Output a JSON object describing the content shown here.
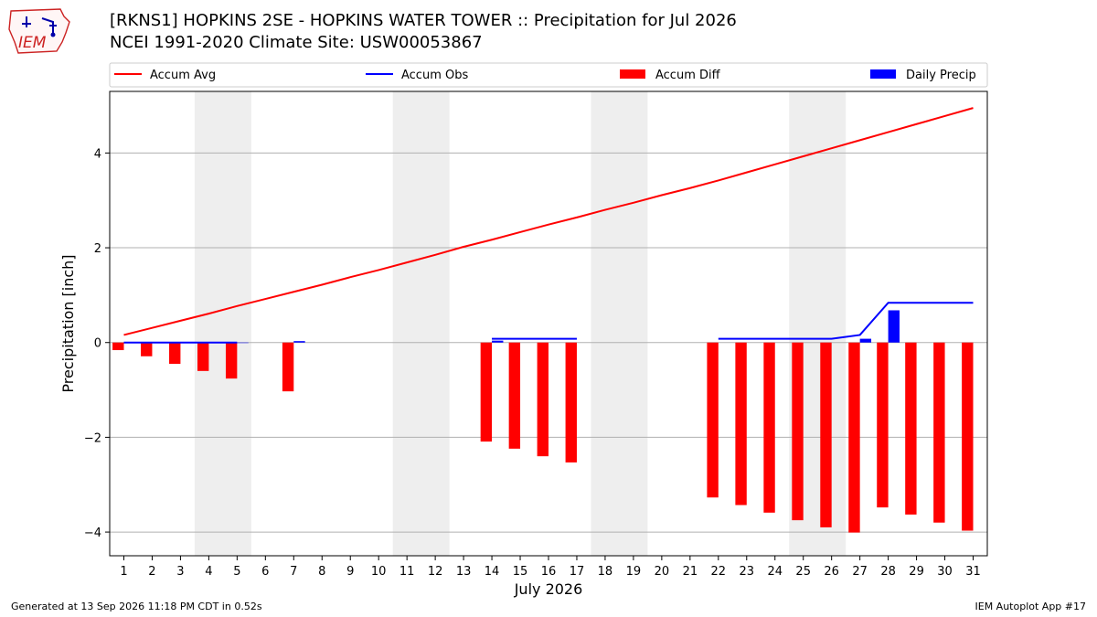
{
  "title_line1": "[RKNS1] HOPKINS 2SE - HOPKINS WATER TOWER :: Precipitation for Jul 2026",
  "title_line2": "NCEI 1991-2020 Climate Site: USW00053867",
  "logo_text": "IEM",
  "footer_left": "Generated at 13 Sep 2026 11:18 PM CDT in 0.52s",
  "footer_right": "IEM Autoplot App #17",
  "colors": {
    "accum_avg": "#ff0000",
    "accum_obs": "#0000ff",
    "accum_diff": "#ff0000",
    "daily_precip": "#0000ff",
    "weekend_shade": "#eeeeee",
    "grid": "#b0b0b0"
  },
  "chart_data": {
    "type": "bar",
    "xlabel": "July 2026",
    "ylabel": "Precipitation [inch]",
    "ylim": [
      -4.5,
      5.3
    ],
    "xlim": [
      0.5,
      31.5
    ],
    "yticks": [
      -4,
      -2,
      0,
      2,
      4
    ],
    "ytick_labels": [
      "−4",
      "−2",
      "0",
      "2",
      "4"
    ],
    "days": [
      1,
      2,
      3,
      4,
      5,
      6,
      7,
      8,
      9,
      10,
      11,
      12,
      13,
      14,
      15,
      16,
      17,
      18,
      19,
      20,
      21,
      22,
      23,
      24,
      25,
      26,
      27,
      28,
      29,
      30,
      31
    ],
    "grid": "horizontal",
    "legend_position": "top",
    "legend": [
      {
        "key": "accum_avg",
        "label": "Accum Avg",
        "kind": "line"
      },
      {
        "key": "accum_obs",
        "label": "Accum Obs",
        "kind": "line"
      },
      {
        "key": "accum_diff",
        "label": "Accum Diff",
        "kind": "bar"
      },
      {
        "key": "daily_precip",
        "label": "Daily Precip",
        "kind": "bar"
      }
    ],
    "weekend_spans": [
      [
        3.5,
        5.5
      ],
      [
        10.5,
        12.5
      ],
      [
        17.5,
        19.5
      ],
      [
        24.5,
        26.5
      ]
    ],
    "accum_avg": [
      0.16,
      0.31,
      0.46,
      0.61,
      0.77,
      0.92,
      1.07,
      1.22,
      1.38,
      1.53,
      1.69,
      1.85,
      2.02,
      2.17,
      2.33,
      2.49,
      2.64,
      2.8,
      2.95,
      3.11,
      3.26,
      3.42,
      3.59,
      3.76,
      3.93,
      4.1,
      4.27,
      4.44,
      4.61,
      4.78,
      4.95
    ],
    "accum_obs_segments": [
      [
        [
          1,
          0.0
        ],
        [
          2,
          0.0
        ],
        [
          3,
          0.0
        ],
        [
          4,
          0.0
        ],
        [
          5,
          0.0
        ]
      ],
      [
        [
          14,
          0.08
        ],
        [
          15,
          0.08
        ],
        [
          16,
          0.08
        ],
        [
          17,
          0.08
        ]
      ],
      [
        [
          22,
          0.08
        ],
        [
          23,
          0.08
        ],
        [
          24,
          0.08
        ],
        [
          25,
          0.08
        ],
        [
          26,
          0.08
        ],
        [
          27,
          0.16
        ],
        [
          28,
          0.84
        ],
        [
          29,
          0.84
        ],
        [
          30,
          0.84
        ],
        [
          31,
          0.84
        ]
      ]
    ],
    "accum_diff": [
      {
        "day": 1,
        "value": -0.16
      },
      {
        "day": 2,
        "value": -0.29
      },
      {
        "day": 3,
        "value": -0.45
      },
      {
        "day": 4,
        "value": -0.6
      },
      {
        "day": 5,
        "value": -0.76
      },
      {
        "day": 7,
        "value": -1.03
      },
      {
        "day": 14,
        "value": -2.09
      },
      {
        "day": 15,
        "value": -2.24
      },
      {
        "day": 16,
        "value": -2.4
      },
      {
        "day": 17,
        "value": -2.53
      },
      {
        "day": 22,
        "value": -3.27
      },
      {
        "day": 23,
        "value": -3.43
      },
      {
        "day": 24,
        "value": -3.59
      },
      {
        "day": 25,
        "value": -3.75
      },
      {
        "day": 26,
        "value": -3.9
      },
      {
        "day": 27,
        "value": -4.01
      },
      {
        "day": 28,
        "value": -3.48
      },
      {
        "day": 29,
        "value": -3.63
      },
      {
        "day": 30,
        "value": -3.8
      },
      {
        "day": 31,
        "value": -3.97
      }
    ],
    "daily_precip": [
      {
        "day": 1,
        "value": 0.0
      },
      {
        "day": 2,
        "value": 0.0
      },
      {
        "day": 3,
        "value": 0.0
      },
      {
        "day": 4,
        "value": 0.0
      },
      {
        "day": 5,
        "value": 0.0
      },
      {
        "day": 7,
        "value": 0.03
      },
      {
        "day": 14,
        "value": 0.04
      },
      {
        "day": 27,
        "value": 0.08
      },
      {
        "day": 28,
        "value": 0.68
      }
    ]
  }
}
